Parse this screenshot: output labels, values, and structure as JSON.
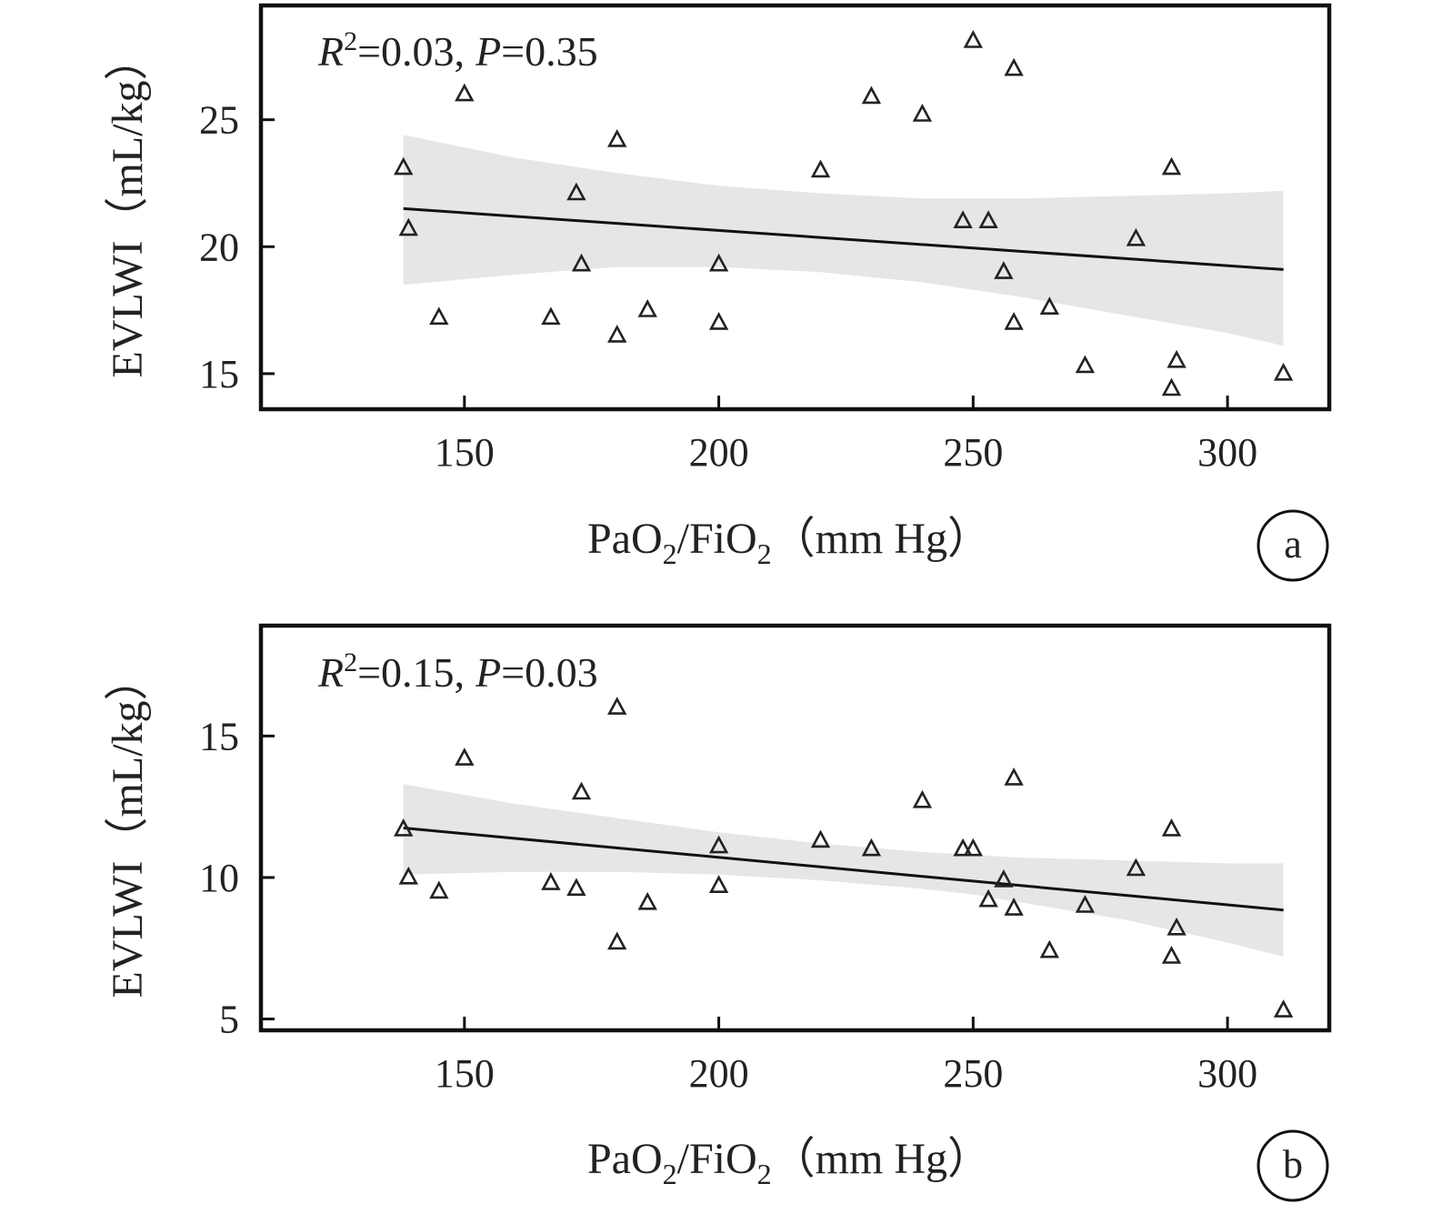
{
  "chart_data": [
    {
      "type": "scatter",
      "panel_label": "a",
      "annotation": {
        "r2_symbol": "R",
        "r2_sup": "2",
        "r2_value": "=0.03,",
        "p_symbol": "P",
        "p_value": "=0.35"
      },
      "xlabel": {
        "prefix": "PaO",
        "sub1": "2",
        "mid": "/FiO",
        "sub2": "2",
        "suffix": "（mm Hg）"
      },
      "ylabel": "EVLWI（mL/kg）",
      "xlim": [
        110,
        320
      ],
      "ylim": [
        13.6,
        29.5
      ],
      "xticks": [
        150,
        200,
        250,
        300
      ],
      "yticks": [
        15,
        20,
        25
      ],
      "grid": false,
      "marker": "triangle-open",
      "points": [
        {
          "x": 138,
          "y": 23.1
        },
        {
          "x": 139,
          "y": 20.7
        },
        {
          "x": 145,
          "y": 17.2
        },
        {
          "x": 150,
          "y": 26.0
        },
        {
          "x": 167,
          "y": 17.2
        },
        {
          "x": 172,
          "y": 22.1
        },
        {
          "x": 173,
          "y": 19.3
        },
        {
          "x": 180,
          "y": 24.2
        },
        {
          "x": 180,
          "y": 16.5
        },
        {
          "x": 186,
          "y": 17.5
        },
        {
          "x": 200,
          "y": 19.3
        },
        {
          "x": 200,
          "y": 17.0
        },
        {
          "x": 220,
          "y": 23.0
        },
        {
          "x": 230,
          "y": 25.9
        },
        {
          "x": 240,
          "y": 25.2
        },
        {
          "x": 248,
          "y": 21.0
        },
        {
          "x": 250,
          "y": 28.1
        },
        {
          "x": 253,
          "y": 21.0
        },
        {
          "x": 256,
          "y": 19.0
        },
        {
          "x": 258,
          "y": 27.0
        },
        {
          "x": 258,
          "y": 17.0
        },
        {
          "x": 265,
          "y": 17.6
        },
        {
          "x": 272,
          "y": 15.3
        },
        {
          "x": 282,
          "y": 20.3
        },
        {
          "x": 289,
          "y": 23.1
        },
        {
          "x": 289,
          "y": 14.4
        },
        {
          "x": 290,
          "y": 15.5
        },
        {
          "x": 311,
          "y": 15.0
        }
      ],
      "fit_line": {
        "x": [
          138,
          311
        ],
        "y": [
          21.5,
          19.1
        ]
      },
      "confidence_band": {
        "x": [
          138,
          160,
          180,
          200,
          220,
          240,
          250,
          260,
          280,
          300,
          311
        ],
        "lower": [
          18.5,
          18.9,
          19.2,
          19.2,
          19.0,
          18.6,
          18.3,
          18.0,
          17.3,
          16.6,
          16.1
        ],
        "upper": [
          24.4,
          23.5,
          22.9,
          22.4,
          22.1,
          21.9,
          21.9,
          21.9,
          22.0,
          22.1,
          22.2
        ]
      }
    },
    {
      "type": "scatter",
      "panel_label": "b",
      "annotation": {
        "r2_symbol": "R",
        "r2_sup": "2",
        "r2_value": "=0.15,",
        "p_symbol": "P",
        "p_value": "=0.03"
      },
      "xlabel": {
        "prefix": "PaO",
        "sub1": "2",
        "mid": "/FiO",
        "sub2": "2",
        "suffix": "（mm Hg）"
      },
      "ylabel": "EVLWI（mL/kg）",
      "xlim": [
        110,
        320
      ],
      "ylim": [
        4.6,
        18.9
      ],
      "xticks": [
        150,
        200,
        250,
        300
      ],
      "yticks": [
        5,
        10,
        15
      ],
      "grid": false,
      "marker": "triangle-open",
      "points": [
        {
          "x": 138,
          "y": 11.7
        },
        {
          "x": 139,
          "y": 10.0
        },
        {
          "x": 145,
          "y": 9.5
        },
        {
          "x": 150,
          "y": 14.2
        },
        {
          "x": 167,
          "y": 9.8
        },
        {
          "x": 172,
          "y": 9.6
        },
        {
          "x": 173,
          "y": 13.0
        },
        {
          "x": 180,
          "y": 16.0
        },
        {
          "x": 180,
          "y": 7.7
        },
        {
          "x": 186,
          "y": 9.1
        },
        {
          "x": 200,
          "y": 11.1
        },
        {
          "x": 200,
          "y": 9.7
        },
        {
          "x": 220,
          "y": 11.3
        },
        {
          "x": 230,
          "y": 11.0
        },
        {
          "x": 240,
          "y": 12.7
        },
        {
          "x": 248,
          "y": 11.0
        },
        {
          "x": 250,
          "y": 11.0
        },
        {
          "x": 253,
          "y": 9.2
        },
        {
          "x": 256,
          "y": 9.9
        },
        {
          "x": 258,
          "y": 13.5
        },
        {
          "x": 258,
          "y": 8.9
        },
        {
          "x": 265,
          "y": 7.4
        },
        {
          "x": 272,
          "y": 9.0
        },
        {
          "x": 282,
          "y": 10.3
        },
        {
          "x": 289,
          "y": 11.7
        },
        {
          "x": 289,
          "y": 7.2
        },
        {
          "x": 290,
          "y": 8.2
        },
        {
          "x": 311,
          "y": 5.3
        }
      ],
      "fit_line": {
        "x": [
          138,
          311
        ],
        "y": [
          11.75,
          8.85
        ]
      },
      "confidence_band": {
        "x": [
          138,
          160,
          180,
          200,
          220,
          240,
          250,
          260,
          280,
          300,
          311
        ],
        "lower": [
          10.1,
          10.2,
          10.2,
          10.1,
          9.9,
          9.6,
          9.4,
          9.1,
          8.5,
          7.7,
          7.2
        ],
        "upper": [
          13.3,
          12.6,
          12.1,
          11.6,
          11.2,
          10.9,
          10.8,
          10.7,
          10.6,
          10.5,
          10.5
        ]
      }
    }
  ]
}
